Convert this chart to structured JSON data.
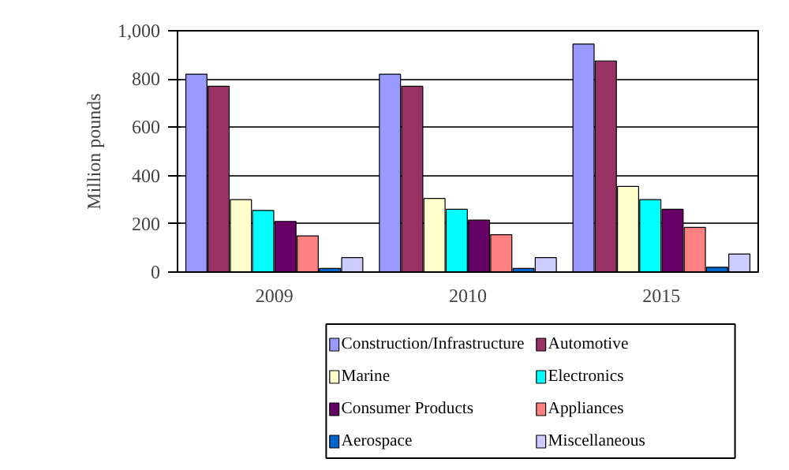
{
  "chart_data": {
    "type": "bar",
    "ylabel": "Million pounds",
    "categories": [
      "2009",
      "2010",
      "2015"
    ],
    "series": [
      {
        "name": "Construction/Infrastructure",
        "color": "#9999ff",
        "values": [
          820,
          820,
          945
        ]
      },
      {
        "name": "Automotive",
        "color": "#993366",
        "values": [
          770,
          770,
          875
        ]
      },
      {
        "name": "Marine",
        "color": "#ffffcc",
        "values": [
          300,
          305,
          355
        ]
      },
      {
        "name": "Electronics",
        "color": "#00ffff",
        "values": [
          255,
          260,
          300
        ]
      },
      {
        "name": "Consumer Products",
        "color": "#660066",
        "values": [
          210,
          215,
          260
        ]
      },
      {
        "name": "Appliances",
        "color": "#ff8080",
        "values": [
          150,
          155,
          185
        ]
      },
      {
        "name": "Aerospace",
        "color": "#0066cc",
        "values": [
          15,
          15,
          20
        ]
      },
      {
        "name": "Miscellaneous",
        "color": "#ccccff",
        "values": [
          60,
          60,
          75
        ]
      }
    ],
    "ylim": [
      0,
      1000
    ],
    "yticks": [
      0,
      200,
      400,
      600,
      800,
      {
        "value": 1000,
        "label": "1,000"
      }
    ],
    "grid": "y",
    "legend": "bottom"
  }
}
